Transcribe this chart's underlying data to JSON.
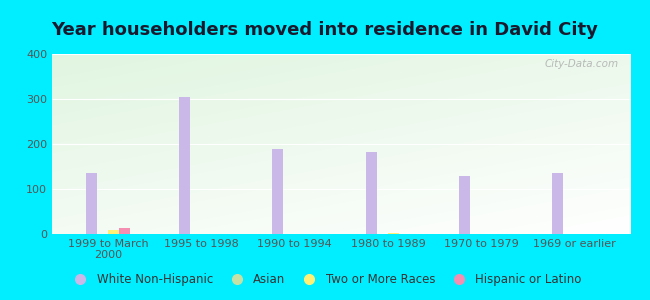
{
  "title": "Year householders moved into residence in David City",
  "categories": [
    "1999 to March\n2000",
    "1995 to 1998",
    "1990 to 1994",
    "1980 to 1989",
    "1970 to 1979",
    "1969 or earlier"
  ],
  "series": {
    "White Non-Hispanic": [
      135,
      305,
      190,
      183,
      128,
      135
    ],
    "Asian": [
      0,
      0,
      0,
      0,
      0,
      0
    ],
    "Two or More Races": [
      10,
      0,
      0,
      3,
      0,
      0
    ],
    "Hispanic or Latino": [
      14,
      0,
      0,
      0,
      0,
      0
    ]
  },
  "colors": {
    "White Non-Hispanic": "#c9b8e8",
    "Asian": "#c5e1a5",
    "Two or More Races": "#fff176",
    "Hispanic or Latino": "#f48fb1"
  },
  "bar_width": 0.12,
  "ylim": [
    0,
    400
  ],
  "yticks": [
    0,
    100,
    200,
    300,
    400
  ],
  "background_color": "#00eeff",
  "title_fontsize": 13,
  "tick_fontsize": 8,
  "legend_fontsize": 8.5,
  "watermark": "City-Data.com"
}
